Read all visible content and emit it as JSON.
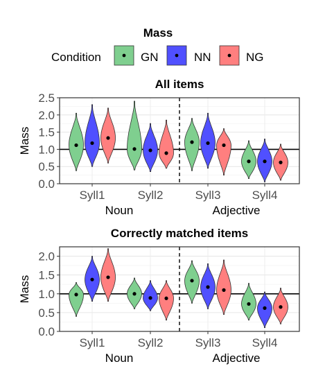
{
  "legend": {
    "title": "Mass",
    "label": "Condition",
    "entries": [
      {
        "name": "GN",
        "color": "#7fcf8f"
      },
      {
        "name": "NN",
        "color": "#5050ff"
      },
      {
        "name": "NG",
        "color": "#ff7f7f"
      }
    ]
  },
  "chart_data": [
    {
      "type": "violin",
      "title": "All items",
      "ylabel": "Mass",
      "ylim": [
        0,
        2.5
      ],
      "yticks": [
        "0.0",
        "0.5",
        "1.0",
        "1.5",
        "2.0",
        "2.5"
      ],
      "categories": [
        "Syll1",
        "Syll2",
        "Syll3",
        "Syll4"
      ],
      "groups": [
        "Noun",
        "Noun",
        "Adjective",
        "Adjective"
      ],
      "group_labels": [
        "Noun",
        "Adjective"
      ],
      "reference_line": 1.0,
      "series": [
        {
          "name": "GN",
          "means": [
            1.12,
            1.01,
            1.21,
            0.65
          ],
          "ranges": [
            [
              0.38,
              2.05
            ],
            [
              0.4,
              2.4
            ],
            [
              0.38,
              1.9
            ],
            [
              0.15,
              1.25
            ]
          ]
        },
        {
          "name": "NN",
          "means": [
            1.18,
            0.97,
            1.18,
            0.65
          ],
          "ranges": [
            [
              0.5,
              2.3
            ],
            [
              0.35,
              1.75
            ],
            [
              0.45,
              2.05
            ],
            [
              0.05,
              1.3
            ]
          ]
        },
        {
          "name": "NG",
          "means": [
            1.33,
            0.89,
            1.12,
            0.62
          ],
          "ranges": [
            [
              0.6,
              2.2
            ],
            [
              0.45,
              1.85
            ],
            [
              0.25,
              1.6
            ],
            [
              0.1,
              1.15
            ]
          ]
        }
      ]
    },
    {
      "type": "violin",
      "title": "Correctly matched items",
      "ylabel": "Mass",
      "ylim": [
        0,
        2.25
      ],
      "yticks": [
        "0.0",
        "0.5",
        "1.0",
        "1.5",
        "2.0"
      ],
      "categories": [
        "Syll1",
        "Syll2",
        "Syll3",
        "Syll4"
      ],
      "groups": [
        "Noun",
        "Noun",
        "Adjective",
        "Adjective"
      ],
      "group_labels": [
        "Noun",
        "Adjective"
      ],
      "reference_line": 1.0,
      "series": [
        {
          "name": "GN",
          "means": [
            0.98,
            1.0,
            1.35,
            0.73
          ],
          "ranges": [
            [
              0.4,
              1.3
            ],
            [
              0.6,
              1.42
            ],
            [
              0.75,
              1.88
            ],
            [
              0.3,
              1.28
            ]
          ]
        },
        {
          "name": "NN",
          "means": [
            1.38,
            0.89,
            1.18,
            0.62
          ],
          "ranges": [
            [
              0.8,
              2.0
            ],
            [
              0.55,
              1.35
            ],
            [
              0.6,
              1.8
            ],
            [
              0.1,
              1.05
            ]
          ]
        },
        {
          "name": "NG",
          "means": [
            1.44,
            0.88,
            1.1,
            0.65
          ],
          "ranges": [
            [
              0.8,
              2.2
            ],
            [
              0.3,
              1.35
            ],
            [
              0.45,
              1.9
            ],
            [
              0.2,
              1.15
            ]
          ]
        }
      ]
    }
  ]
}
